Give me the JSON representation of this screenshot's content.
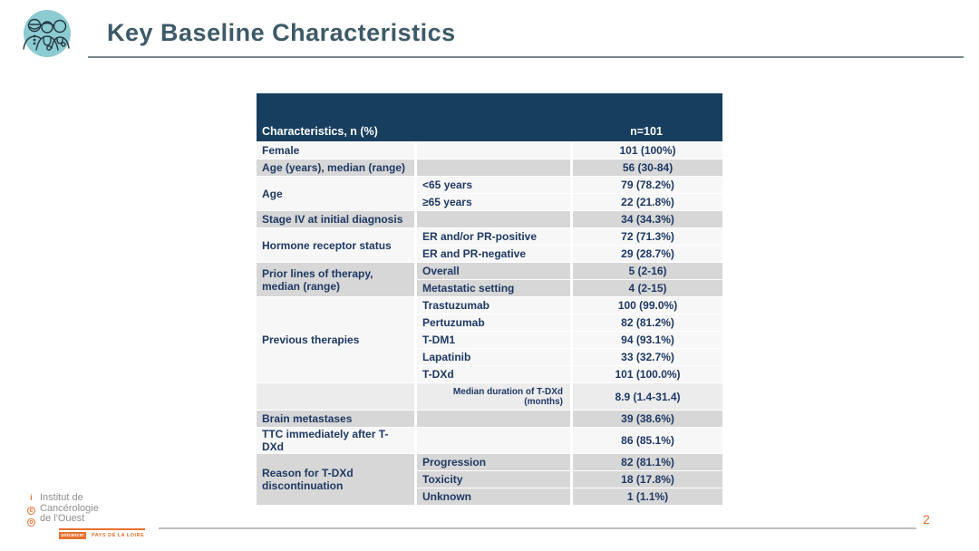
{
  "slide": {
    "title": "Key Baseline Characteristics",
    "page_number": "2"
  },
  "colors": {
    "header_bg": "#173E5E",
    "row_gray": "#D7D7D7",
    "row_light": "#F7F7F7",
    "row_median": "#ECECEC",
    "text_blue": "#1F3864",
    "title_color": "#3E5A68",
    "accent_orange": "#E8712E",
    "icon_teal": "#8CCBD1"
  },
  "icons": {
    "top_left": "medical-team-icon",
    "footer": "ico-logo"
  },
  "table": {
    "header": {
      "label": "Characteristics, n (%)",
      "value": "n=101"
    },
    "groups": [
      {
        "label": "Female",
        "shade": "light",
        "items": [
          {
            "sub": "",
            "value": "101 (100%)"
          }
        ]
      },
      {
        "label": "Age (years), median (range)",
        "shade": "gray",
        "items": [
          {
            "sub": "",
            "value": "56 (30-84)"
          }
        ]
      },
      {
        "label": "Age",
        "shade": "light",
        "items": [
          {
            "sub": "<65 years",
            "value": "79 (78.2%)"
          },
          {
            "sub": "≥65 years",
            "value": "22 (21.8%)"
          }
        ]
      },
      {
        "label": "Stage IV at initial diagnosis",
        "shade": "gray",
        "items": [
          {
            "sub": "",
            "value": "34 (34.3%)"
          }
        ]
      },
      {
        "label": "Hormone receptor status",
        "shade": "light",
        "items": [
          {
            "sub": "ER and/or PR-positive",
            "value": "72 (71.3%)"
          },
          {
            "sub": "ER and PR-negative",
            "value": "29 (28.7%)"
          }
        ]
      },
      {
        "label": "Prior lines of therapy, median (range)",
        "shade": "gray",
        "items": [
          {
            "sub": "Overall",
            "value": "5 (2-16)"
          },
          {
            "sub": "Metastatic setting",
            "value": "4 (2-15)"
          }
        ]
      },
      {
        "label": "Previous therapies",
        "shade": "light",
        "items": [
          {
            "sub": "Trastuzumab",
            "value": "100 (99.0%)"
          },
          {
            "sub": "Pertuzumab",
            "value": "82 (81.2%)"
          },
          {
            "sub": "T-DM1",
            "value": "94 (93.1%)"
          },
          {
            "sub": "Lapatinib",
            "value": "33 (32.7%)"
          },
          {
            "sub": "T-DXd",
            "value": "101 (100.0%)"
          }
        ]
      },
      {
        "label": "",
        "shade": "median",
        "items": [
          {
            "sub": "Median duration of T-DXd (months)",
            "value": "8.9 (1.4-31.4)",
            "small": true
          }
        ]
      },
      {
        "label": "Brain metastases",
        "shade": "gray",
        "items": [
          {
            "sub": "",
            "value": "39 (38.6%)"
          }
        ]
      },
      {
        "label": "TTC immediately after T-DXd",
        "shade": "light",
        "items": [
          {
            "sub": "",
            "value": "86 (85.1%)"
          }
        ]
      },
      {
        "label": "Reason for T-DXd discontinuation",
        "shade": "gray",
        "items": [
          {
            "sub": "Progression",
            "value": "82 (81.1%)"
          },
          {
            "sub": "Toxicity",
            "value": "18 (17.8%)"
          },
          {
            "sub": "Unknown",
            "value": "1 (1.1%)"
          }
        ]
      }
    ]
  },
  "footer": {
    "institute": [
      "Institut de",
      "Cancérologie",
      "de l'Ouest"
    ],
    "ico_letters": [
      "i",
      "c",
      "o"
    ],
    "badge": "unicancer",
    "region": "PAYS DE LA LOIRE"
  }
}
